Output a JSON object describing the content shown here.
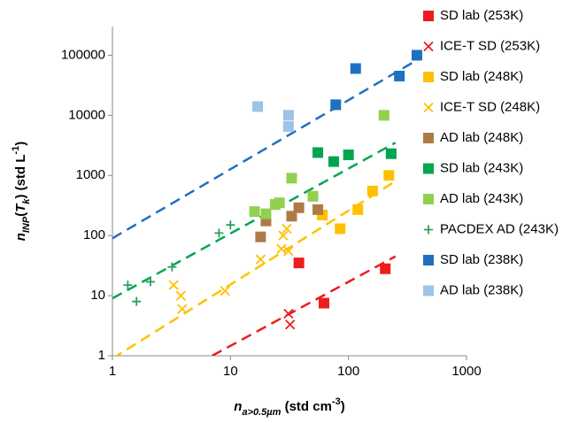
{
  "chart_data": {
    "type": "scatter",
    "log_x": true,
    "log_y": true,
    "xlim": [
      1,
      1000
    ],
    "xticks": [
      1,
      10,
      100,
      1000
    ],
    "ylim": [
      1,
      300000
    ],
    "yticks": [
      1,
      10,
      100,
      1000,
      10000,
      100000
    ],
    "grid": false,
    "legend": "right",
    "x_label": [
      {
        "text": "n",
        "shift": "italic"
      },
      {
        "text": "a>0.5µm",
        "shift": "sub"
      },
      {
        "text": " (std cm",
        "shift": "normal"
      },
      {
        "text": "-3",
        "shift": "sup"
      },
      {
        "text": ")",
        "shift": "normal"
      }
    ],
    "y_label": [
      {
        "text": "n",
        "shift": "italic"
      },
      {
        "text": "INP",
        "shift": "sub"
      },
      {
        "text": "(",
        "shift": "normal"
      },
      {
        "text": "T",
        "shift": "italic"
      },
      {
        "text": "k",
        "shift": "sub"
      },
      {
        "text": ") (std L",
        "shift": "normal"
      },
      {
        "text": "-1",
        "shift": "sup"
      },
      {
        "text": ")",
        "shift": "normal"
      }
    ],
    "series": [
      {
        "name": "SD lab (253K)",
        "color": "#ee1c1c",
        "marker": "square",
        "x": [
          38,
          62,
          205
        ],
        "values": [
          35,
          7.5,
          28
        ]
      },
      {
        "name": "ICE-T SD (253K)",
        "color": "#ee1c1c",
        "marker": "x",
        "x": [
          31,
          32
        ],
        "values": [
          5,
          3.3
        ]
      },
      {
        "name": "SD lab (248K)",
        "color": "#ffc000",
        "marker": "square",
        "x": [
          60,
          85,
          120,
          160,
          220
        ],
        "values": [
          220,
          130,
          270,
          550,
          1000
        ]
      },
      {
        "name": "ICE-T SD (248K)",
        "color": "#ffc000",
        "marker": "x",
        "x": [
          3.3,
          3.8,
          3.9,
          9,
          18,
          27,
          28,
          30,
          31
        ],
        "values": [
          15,
          10,
          6,
          12,
          40,
          60,
          100,
          130,
          55
        ]
      },
      {
        "name": "AD lab (248K)",
        "color": "#b07a45",
        "marker": "square",
        "x": [
          18,
          20,
          33,
          38,
          55
        ],
        "values": [
          95,
          175,
          210,
          290,
          270
        ]
      },
      {
        "name": "SD lab (243K)",
        "color": "#00a550",
        "marker": "square",
        "x": [
          55,
          75,
          100,
          230
        ],
        "values": [
          2400,
          1700,
          2200,
          2300
        ]
      },
      {
        "name": "AD lab (243K)",
        "color": "#92d050",
        "marker": "square",
        "x": [
          16,
          20,
          24,
          26,
          33,
          50,
          200
        ],
        "values": [
          250,
          230,
          330,
          350,
          900,
          450,
          10000
        ]
      },
      {
        "name": "PACDEX AD (243K)",
        "color": "#2aa060",
        "marker": "plus",
        "x": [
          1.35,
          1.6,
          2.1,
          3.2,
          8,
          10
        ],
        "values": [
          15,
          8,
          17,
          30,
          110,
          150
        ]
      },
      {
        "name": "SD lab (238K)",
        "color": "#1f70c0",
        "marker": "square",
        "x": [
          78,
          115,
          270,
          380
        ],
        "values": [
          15000,
          60000,
          45000,
          100000
        ]
      },
      {
        "name": "AD lab (238K)",
        "color": "#9dc3e6",
        "marker": "square",
        "x": [
          17,
          31,
          31
        ],
        "values": [
          14000,
          6500,
          10000
        ]
      }
    ],
    "fit_lines": [
      {
        "color": "#1f70c0",
        "x": [
          1,
          400
        ],
        "values": [
          90,
          88000
        ]
      },
      {
        "color": "#00a550",
        "x": [
          1,
          250
        ],
        "values": [
          9,
          3500
        ]
      },
      {
        "color": "#ffc000",
        "x": [
          1,
          250
        ],
        "values": [
          0.9,
          800
        ]
      },
      {
        "color": "#ee1c1c",
        "x": [
          7,
          250
        ],
        "values": [
          1,
          45
        ]
      }
    ]
  }
}
